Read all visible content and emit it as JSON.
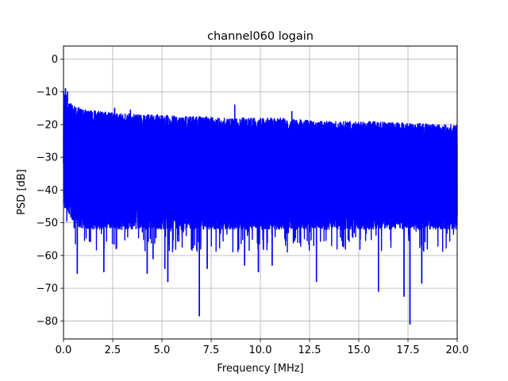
{
  "chart_data": {
    "type": "line",
    "title": "channel060 logain",
    "xlabel": "Frequency [MHz]",
    "ylabel": "PSD [dB]",
    "xlim": [
      0,
      20
    ],
    "ylim": [
      -85.5,
      4
    ],
    "xticks": [
      0,
      2.5,
      5,
      7.5,
      10,
      12.5,
      15,
      17.5,
      20
    ],
    "xtick_labels": [
      "0.0",
      "2.5",
      "5.0",
      "7.5",
      "10.0",
      "12.5",
      "15.0",
      "17.5",
      "20.0"
    ],
    "yticks": [
      0,
      -10,
      -20,
      -30,
      -40,
      -50,
      -60,
      -70,
      -80
    ],
    "ytick_labels": [
      "0",
      "−10",
      "−20",
      "−30",
      "−40",
      "−50",
      "−60",
      "−70",
      "−80"
    ],
    "grid": true,
    "series": [
      {
        "color": "#0000ff",
        "description_of_envelope": "",
        "upper_envelope": {
          "x": [
            0.0,
            0.1,
            0.2,
            0.5,
            1.0,
            2.0,
            3.0,
            4.0,
            5.0,
            6.0,
            7.0,
            8.0,
            9.0,
            10.0,
            11.0,
            12.0,
            13.0,
            14.0,
            15.0,
            16.0,
            17.0,
            18.0,
            19.0,
            20.0
          ],
          "y": [
            -9,
            -10,
            -13,
            -14,
            -15.5,
            -16,
            -16.5,
            -17,
            -17,
            -17.5,
            -17.5,
            -18,
            -18,
            -18,
            -18,
            -18.5,
            -19,
            -19,
            -19,
            -19,
            -19.5,
            -19.5,
            -20,
            -20
          ]
        },
        "lower_envelope": {
          "x": [
            0.0,
            0.5,
            1.0,
            2.0,
            3.0,
            4.0,
            5.0,
            6.0,
            7.0,
            8.0,
            9.0,
            10.0,
            11.0,
            12.0,
            13.0,
            14.0,
            15.0,
            16.0,
            17.0,
            18.0,
            19.0,
            20.0
          ],
          "y": [
            -42,
            -48,
            -50,
            -50,
            -50,
            -50,
            -50,
            -50,
            -50,
            -50,
            -50,
            -50,
            -50,
            -50,
            -50,
            -50,
            -50,
            -50,
            -50,
            -50,
            -50,
            -50
          ]
        },
        "peaks": [
          {
            "x": 0.1,
            "y": -9
          },
          {
            "x": 0.2,
            "y": -10
          },
          {
            "x": 2.6,
            "y": -15
          },
          {
            "x": 3.4,
            "y": -15.5
          },
          {
            "x": 8.7,
            "y": -14
          },
          {
            "x": 11.6,
            "y": -16
          }
        ],
        "dips": [
          {
            "x": 0.7,
            "y": -65.5
          },
          {
            "x": 2.05,
            "y": -65
          },
          {
            "x": 4.25,
            "y": -65.5
          },
          {
            "x": 4.55,
            "y": -61
          },
          {
            "x": 5.15,
            "y": -64
          },
          {
            "x": 5.3,
            "y": -68
          },
          {
            "x": 6.9,
            "y": -78.5
          },
          {
            "x": 7.3,
            "y": -64
          },
          {
            "x": 9.2,
            "y": -63
          },
          {
            "x": 9.9,
            "y": -65
          },
          {
            "x": 10.6,
            "y": -63
          },
          {
            "x": 12.85,
            "y": -68
          },
          {
            "x": 16.0,
            "y": -71
          },
          {
            "x": 17.3,
            "y": -72.5
          },
          {
            "x": 17.6,
            "y": -81
          },
          {
            "x": 18.2,
            "y": -68.5
          }
        ]
      }
    ]
  }
}
